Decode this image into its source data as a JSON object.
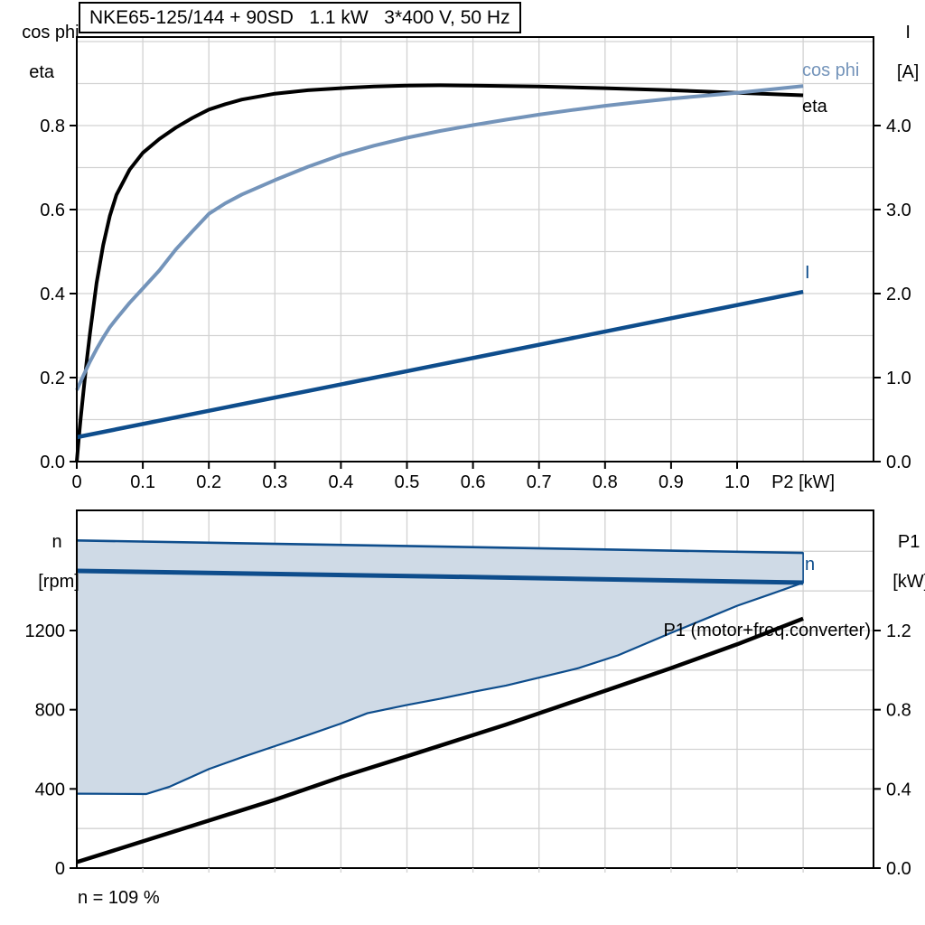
{
  "title": "NKE65-125/144 + 90SD   1.1 kW   3*400 V, 50 Hz",
  "axes": {
    "top_left": [
      "cos phi",
      "eta"
    ],
    "top_right": [
      "I",
      "[A]"
    ],
    "bottom_left": [
      "n",
      "[rpm]"
    ],
    "bottom_right": [
      "P1",
      "[kW]"
    ]
  },
  "footnote": "n = 109 %",
  "colors": {
    "black": "#000000",
    "steel_blue": "#7494BA",
    "navy": "#0E4D8C",
    "band_fill": "#CFDAE6",
    "grid": "#D2D2D2",
    "frame": "#000000"
  },
  "chart_data": [
    {
      "type": "line",
      "title": "NKE65-125/144 + 90SD   1.1 kW   3*400 V, 50 Hz",
      "xlabel": "P2 [kW]",
      "ylabel_left": "cos phi / eta",
      "ylabel_right": "I [A]",
      "xlim": [
        0,
        1.207
      ],
      "ylim_left": [
        0,
        1.01
      ],
      "ylim_right": [
        0,
        5.05
      ],
      "grid": true,
      "x_grid": [
        0.1,
        0.2,
        0.3,
        0.4,
        0.5,
        0.6,
        0.7,
        0.8,
        0.9,
        1.0,
        1.1
      ],
      "y_grid_left": [
        0.1,
        0.2,
        0.3,
        0.4,
        0.5,
        0.6,
        0.7,
        0.8,
        0.9,
        1.0
      ],
      "x_ticks": [
        {
          "v": 0,
          "label": "0"
        },
        {
          "v": 0.1,
          "label": "0.1"
        },
        {
          "v": 0.2,
          "label": "0.2"
        },
        {
          "v": 0.3,
          "label": "0.3"
        },
        {
          "v": 0.4,
          "label": "0.4"
        },
        {
          "v": 0.5,
          "label": "0.5"
        },
        {
          "v": 0.6,
          "label": "0.6"
        },
        {
          "v": 0.7,
          "label": "0.7"
        },
        {
          "v": 0.8,
          "label": "0.8"
        },
        {
          "v": 0.9,
          "label": "0.9"
        },
        {
          "v": 1.0,
          "label": "1.0"
        }
      ],
      "xlabel_at": 1.1,
      "y_ticks_left": [
        {
          "v": 0,
          "label": "0.0"
        },
        {
          "v": 0.2,
          "label": "0.2"
        },
        {
          "v": 0.4,
          "label": "0.4"
        },
        {
          "v": 0.6,
          "label": "0.6"
        },
        {
          "v": 0.8,
          "label": "0.8"
        }
      ],
      "y_ticks_right": [
        {
          "v": 0,
          "label": "0.0"
        },
        {
          "v": 1,
          "label": "1.0"
        },
        {
          "v": 2,
          "label": "2.0"
        },
        {
          "v": 3,
          "label": "3.0"
        },
        {
          "v": 4,
          "label": "4.0"
        }
      ],
      "series": [
        {
          "name": "eta",
          "label": "eta",
          "axis": "left",
          "color": "#000000",
          "width": 4,
          "points": [
            [
              0,
              0
            ],
            [
              0.003,
              0.055
            ],
            [
              0.006,
              0.105
            ],
            [
              0.01,
              0.165
            ],
            [
              0.015,
              0.24
            ],
            [
              0.02,
              0.305
            ],
            [
              0.03,
              0.425
            ],
            [
              0.04,
              0.515
            ],
            [
              0.05,
              0.585
            ],
            [
              0.06,
              0.635
            ],
            [
              0.08,
              0.695
            ],
            [
              0.1,
              0.735
            ],
            [
              0.125,
              0.768
            ],
            [
              0.15,
              0.795
            ],
            [
              0.175,
              0.818
            ],
            [
              0.2,
              0.838
            ],
            [
              0.225,
              0.851
            ],
            [
              0.25,
              0.862
            ],
            [
              0.3,
              0.876
            ],
            [
              0.35,
              0.884
            ],
            [
              0.4,
              0.889
            ],
            [
              0.45,
              0.893
            ],
            [
              0.5,
              0.895
            ],
            [
              0.55,
              0.896
            ],
            [
              0.6,
              0.895
            ],
            [
              0.7,
              0.893
            ],
            [
              0.8,
              0.889
            ],
            [
              0.9,
              0.884
            ],
            [
              1.0,
              0.878
            ],
            [
              1.05,
              0.875
            ],
            [
              1.1,
              0.872
            ]
          ]
        },
        {
          "name": "cos phi",
          "label": "cos phi",
          "axis": "left",
          "color": "#7494BA",
          "width": 4,
          "points": [
            [
              0,
              0.17
            ],
            [
              0.01,
              0.205
            ],
            [
              0.02,
              0.238
            ],
            [
              0.03,
              0.268
            ],
            [
              0.04,
              0.295
            ],
            [
              0.05,
              0.32
            ],
            [
              0.06,
              0.34
            ],
            [
              0.08,
              0.378
            ],
            [
              0.1,
              0.412
            ],
            [
              0.125,
              0.455
            ],
            [
              0.15,
              0.505
            ],
            [
              0.175,
              0.548
            ],
            [
              0.2,
              0.59
            ],
            [
              0.225,
              0.615
            ],
            [
              0.25,
              0.636
            ],
            [
              0.3,
              0.67
            ],
            [
              0.35,
              0.702
            ],
            [
              0.4,
              0.73
            ],
            [
              0.45,
              0.752
            ],
            [
              0.5,
              0.771
            ],
            [
              0.55,
              0.787
            ],
            [
              0.6,
              0.801
            ],
            [
              0.65,
              0.814
            ],
            [
              0.7,
              0.826
            ],
            [
              0.75,
              0.837
            ],
            [
              0.8,
              0.847
            ],
            [
              0.85,
              0.856
            ],
            [
              0.9,
              0.864
            ],
            [
              0.95,
              0.871
            ],
            [
              1.0,
              0.878
            ],
            [
              1.05,
              0.886
            ],
            [
              1.1,
              0.894
            ]
          ]
        },
        {
          "name": "I",
          "label": "I",
          "axis": "right",
          "color": "#0E4D8C",
          "width": 4.5,
          "points": [
            [
              0,
              0.29
            ],
            [
              0.55,
              1.155
            ],
            [
              1.1,
              2.02
            ]
          ]
        }
      ]
    },
    {
      "type": "line",
      "xlabel": "",
      "ylabel_left": "n [rpm]",
      "ylabel_right": "P1 [kW]",
      "xlim": [
        0,
        1.207
      ],
      "ylim_left": [
        0,
        1806
      ],
      "ylim_right": [
        0,
        1.806
      ],
      "grid": true,
      "x_grid": [
        0.1,
        0.2,
        0.3,
        0.4,
        0.5,
        0.6,
        0.7,
        0.8,
        0.9,
        1.0,
        1.1
      ],
      "y_grid_left": [
        200,
        400,
        600,
        800,
        1000,
        1200,
        1400,
        1600
      ],
      "x_ticks": [],
      "y_ticks_left": [
        {
          "v": 0,
          "label": "0"
        },
        {
          "v": 400,
          "label": "400"
        },
        {
          "v": 800,
          "label": "800"
        },
        {
          "v": 1200,
          "label": "1200"
        }
      ],
      "y_ticks_right": [
        {
          "v": 0,
          "label": "0.0"
        },
        {
          "v": 0.4,
          "label": "0.4"
        },
        {
          "v": 0.8,
          "label": "0.8"
        },
        {
          "v": 1.2,
          "label": "1.2"
        }
      ],
      "band": {
        "name": "speed-control-range",
        "fill": "#CFDAE6",
        "line_color": "#0E4D8C",
        "upper": [
          [
            0,
            1655
          ],
          [
            0.55,
            1624
          ],
          [
            1.1,
            1592
          ]
        ],
        "lower": [
          [
            0,
            376
          ],
          [
            0.105,
            374
          ],
          [
            0.14,
            410
          ],
          [
            0.17,
            455
          ],
          [
            0.2,
            500
          ],
          [
            0.25,
            560
          ],
          [
            0.3,
            616
          ],
          [
            0.35,
            672
          ],
          [
            0.4,
            730
          ],
          [
            0.44,
            782
          ],
          [
            0.5,
            824
          ],
          [
            0.55,
            855
          ],
          [
            0.6,
            890
          ],
          [
            0.65,
            922
          ],
          [
            0.7,
            962
          ],
          [
            0.76,
            1010
          ],
          [
            0.82,
            1075
          ],
          [
            0.9,
            1188
          ],
          [
            0.96,
            1270
          ],
          [
            1.0,
            1325
          ],
          [
            1.05,
            1383
          ],
          [
            1.1,
            1442
          ]
        ]
      },
      "series": [
        {
          "name": "n",
          "label": "n",
          "axis": "left",
          "color": "#0E4D8C",
          "width": 5,
          "points": [
            [
              0,
              1501
            ],
            [
              0.55,
              1473
            ],
            [
              1.1,
              1442
            ]
          ]
        },
        {
          "name": "P1 (motor+freq.converter)",
          "label": "P1 (motor+freq.converter)",
          "axis": "right",
          "color": "#000000",
          "width": 4.5,
          "points": [
            [
              0,
              0.03
            ],
            [
              0.1,
              0.135
            ],
            [
              0.2,
              0.24
            ],
            [
              0.3,
              0.345
            ],
            [
              0.4,
              0.46
            ],
            [
              0.5,
              0.565
            ],
            [
              0.65,
              0.725
            ],
            [
              0.8,
              0.895
            ],
            [
              0.9,
              1.01
            ],
            [
              1.0,
              1.13
            ],
            [
              1.1,
              1.26
            ]
          ]
        }
      ],
      "annotation": "n = 109 %"
    }
  ]
}
